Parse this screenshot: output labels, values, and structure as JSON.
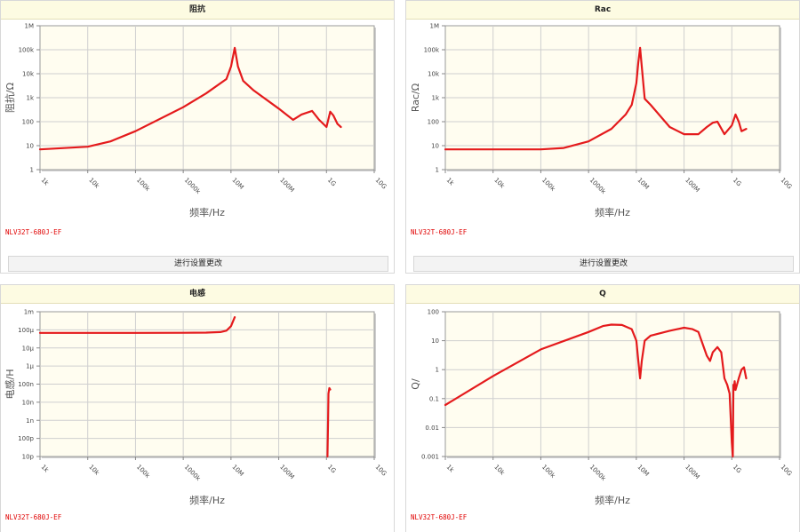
{
  "part_number": "NLV32T-680J-EF",
  "settings_button_label": "进行设置更改",
  "colors": {
    "curve": "#e41a1c",
    "plot_bg": "#fffdf0",
    "title_bg": "#fdfbe2"
  },
  "chart_data": [
    {
      "type": "line",
      "title": "阻抗",
      "xlabel": "频率/Hz",
      "ylabel": "阻抗/Ω",
      "x_scale": "log",
      "y_scale": "log",
      "xlim": [
        1000,
        10000000000
      ],
      "ylim": [
        1,
        1000000
      ],
      "x_ticks": [
        "1k",
        "10k",
        "100k",
        "1000k",
        "10M",
        "100M",
        "1G",
        "10G"
      ],
      "y_ticks": [
        "1",
        "10",
        "100",
        "1k",
        "10k",
        "100k",
        "1M"
      ],
      "grid": true,
      "series": [
        {
          "x": [
            1000,
            10000,
            30000,
            100000,
            1000000,
            3000000,
            8000000,
            10000000,
            12000000,
            14000000,
            18000000,
            30000000,
            100000000,
            200000000,
            300000000,
            500000000,
            700000000,
            1000000000,
            1200000000,
            1400000000,
            1700000000,
            2000000000
          ],
          "y": [
            7,
            9,
            15,
            40,
            400,
            1500,
            6000,
            20000,
            120000,
            20000,
            5000,
            2000,
            350,
            120,
            200,
            280,
            120,
            60,
            260,
            180,
            80,
            60
          ]
        }
      ]
    },
    {
      "type": "line",
      "title": "Rac",
      "xlabel": "频率/Hz",
      "ylabel": "Rac/Ω",
      "x_scale": "log",
      "y_scale": "log",
      "xlim": [
        1000,
        10000000000
      ],
      "ylim": [
        1,
        1000000
      ],
      "x_ticks": [
        "1k",
        "10k",
        "100k",
        "1000k",
        "10M",
        "100M",
        "1G",
        "10G"
      ],
      "y_ticks": [
        "1",
        "10",
        "100",
        "1k",
        "10k",
        "100k",
        "1M"
      ],
      "grid": true,
      "series": [
        {
          "x": [
            1000,
            100000,
            300000,
            1000000,
            3000000,
            6000000,
            8000000,
            10000000,
            11000000,
            12000000,
            13000000,
            15000000,
            20000000,
            50000000,
            100000000,
            200000000,
            300000000,
            400000000,
            500000000,
            700000000,
            1000000000,
            1200000000,
            1400000000,
            1600000000,
            2000000000
          ],
          "y": [
            7,
            7,
            8,
            15,
            50,
            200,
            500,
            4000,
            30000,
            120000,
            20000,
            900,
            500,
            60,
            30,
            30,
            60,
            90,
            100,
            30,
            70,
            200,
            100,
            40,
            50
          ]
        }
      ]
    },
    {
      "type": "line",
      "title": "电感",
      "xlabel": "频率/Hz",
      "ylabel": "电感/H",
      "x_scale": "log",
      "y_scale": "log",
      "xlim": [
        1000,
        10000000000
      ],
      "ylim": [
        1e-11,
        0.001
      ],
      "x_ticks": [
        "1k",
        "10k",
        "100k",
        "1000k",
        "10M",
        "100M",
        "1G",
        "10G"
      ],
      "y_ticks": [
        "10p",
        "100p",
        "1n",
        "10n",
        "100n",
        "1µ",
        "10µ",
        "100µ",
        "1m"
      ],
      "grid": true,
      "series": [
        {
          "x": [
            1000,
            100000,
            1000000,
            3000000,
            6000000,
            8000000,
            10000000,
            12000000
          ],
          "y": [
            6.8e-05,
            6.8e-05,
            6.9e-05,
            7e-05,
            7.5e-05,
            9e-05,
            0.00016,
            0.0005
          ]
        },
        {
          "x": [
            1050000000,
            1080000000,
            1100000000,
            1150000000,
            1200000000
          ],
          "y": [
            1e-11,
            1e-09,
            3e-08,
            6e-08,
            5e-08
          ]
        }
      ]
    },
    {
      "type": "line",
      "title": "Q",
      "xlabel": "频率/Hz",
      "ylabel": "Q/",
      "x_scale": "log",
      "y_scale": "log",
      "xlim": [
        1000,
        10000000000
      ],
      "ylim": [
        0.001,
        100
      ],
      "x_ticks": [
        "1k",
        "10k",
        "100k",
        "1000k",
        "10M",
        "100M",
        "1G",
        "10G"
      ],
      "y_ticks": [
        "0.001",
        "0.01",
        "0.1",
        "1",
        "10",
        "100"
      ],
      "grid": true,
      "series": [
        {
          "x": [
            1000,
            10000,
            100000,
            1000000,
            2000000,
            3000000,
            5000000,
            8000000,
            10000000,
            11000000,
            12000000,
            13000000,
            15000000,
            20000000,
            50000000,
            100000000,
            150000000,
            200000000,
            300000000,
            350000000,
            400000000,
            500000000,
            600000000,
            700000000,
            800000000,
            900000000,
            1000000000,
            1050000000,
            1080000000,
            1100000000,
            1150000000,
            1200000000,
            1400000000,
            1600000000,
            1800000000,
            2000000000
          ],
          "y": [
            0.06,
            0.6,
            5,
            20,
            32,
            36,
            35,
            25,
            10,
            2,
            0.5,
            2,
            10,
            15,
            22,
            28,
            25,
            20,
            3,
            2,
            4,
            6,
            4,
            0.5,
            0.3,
            0.15,
            0.003,
            0.001,
            0.3,
            0.2,
            0.4,
            0.2,
            0.5,
            1,
            1.2,
            0.5
          ]
        }
      ]
    }
  ]
}
